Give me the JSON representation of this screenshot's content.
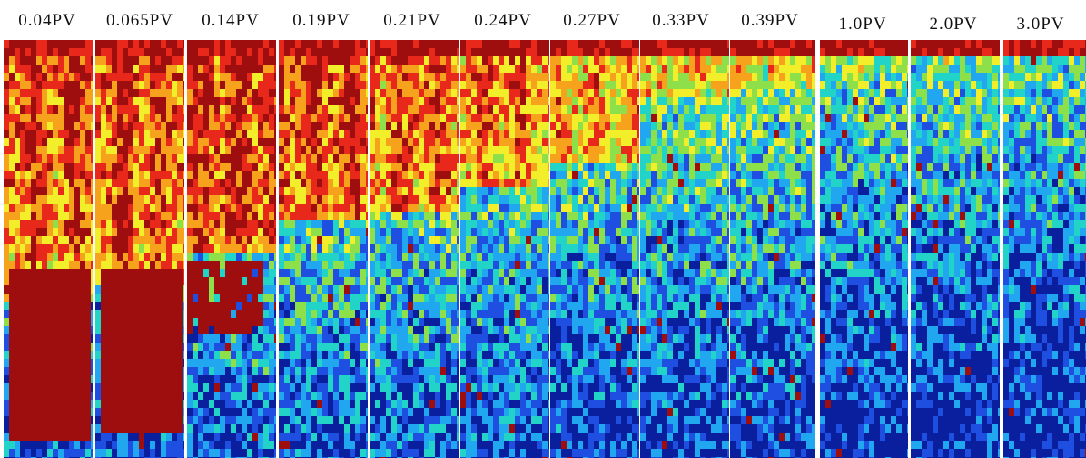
{
  "figure": {
    "panels": [
      {
        "label": "0.04PV",
        "red_front": 0.61,
        "saturation": 0.62,
        "front_shape": "plug"
      },
      {
        "label": "0.065PV",
        "red_front": 0.58,
        "saturation": 0.62,
        "front_shape": "plug"
      },
      {
        "label": "0.14PV",
        "red_front": 0.5,
        "saturation": 0.64,
        "front_shape": "patch"
      },
      {
        "label": "0.19PV",
        "red_front": 0.42,
        "saturation": 0.62,
        "front_shape": "taper"
      },
      {
        "label": "0.21PV",
        "red_front": 0.4,
        "saturation": 0.58,
        "front_shape": "taper"
      },
      {
        "label": "0.24PV",
        "red_front": 0.35,
        "saturation": 0.55,
        "front_shape": "taper"
      },
      {
        "label": "0.27PV",
        "red_front": 0.28,
        "saturation": 0.48,
        "front_shape": "scatter"
      },
      {
        "label": "0.33PV",
        "red_front": 0.12,
        "saturation": 0.44,
        "front_shape": "scatter"
      },
      {
        "label": "0.39PV",
        "red_front": 0.1,
        "saturation": 0.42,
        "front_shape": "scatter"
      },
      {
        "label": "1.0PV",
        "red_front": 0.06,
        "saturation": 0.3,
        "front_shape": "scatter"
      },
      {
        "label": "2.0PV",
        "red_front": 0.04,
        "saturation": 0.28,
        "front_shape": "scatter"
      },
      {
        "label": "3.0PV",
        "red_front": 0.03,
        "saturation": 0.26,
        "front_shape": "scatter"
      }
    ],
    "colormap": [
      "#0a1f9e",
      "#1f4fe0",
      "#21a6f0",
      "#22d4c8",
      "#8ee04a",
      "#f2ee2a",
      "#f7a21c",
      "#e8281a",
      "#9e0e0e"
    ]
  }
}
